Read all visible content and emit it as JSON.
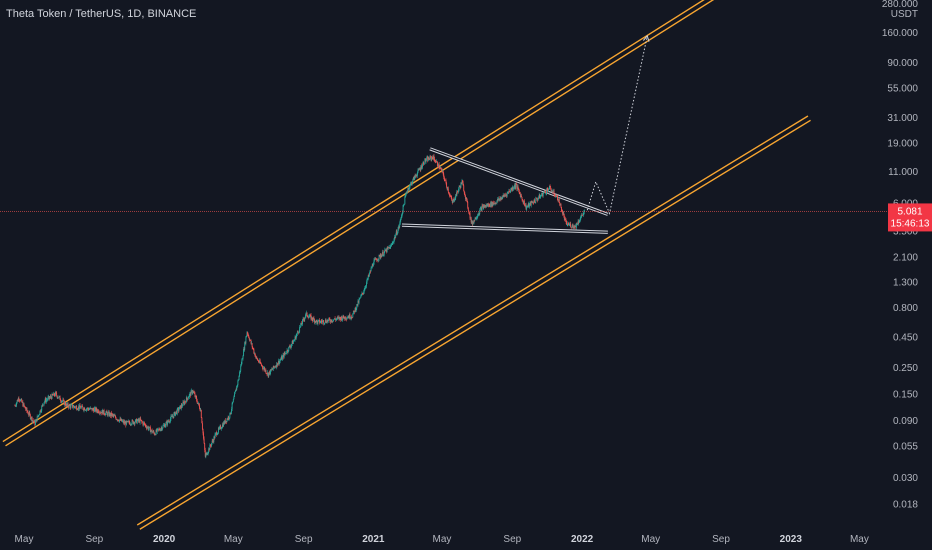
{
  "title": "Theta Token / TetherUS, 1D, BINANCE",
  "price_axis": {
    "unit_top": "280.000",
    "unit_label": "USDT",
    "current_price": "5.081",
    "countdown": "15:46:13"
  },
  "colors": {
    "background": "#131722",
    "up_candle": "#26a69a",
    "down_candle": "#ef5350",
    "channel": "#f7a531",
    "triangle": "#d1d4dc",
    "price_line": "#ef5350",
    "price_badge": "#f23645",
    "axis_text": "#b2b5be"
  },
  "chart_data": {
    "type": "candlestick",
    "title": "Theta Token / TetherUS, 1D, BINANCE",
    "y_scale": "log",
    "ylim": [
      0.012,
      300
    ],
    "yticks": [
      {
        "value": 160,
        "label": "160.000"
      },
      {
        "value": 90,
        "label": "90.000"
      },
      {
        "value": 55,
        "label": "55.000"
      },
      {
        "value": 31,
        "label": "31.000"
      },
      {
        "value": 19,
        "label": "19.000"
      },
      {
        "value": 11,
        "label": "11.000"
      },
      {
        "value": 6,
        "label": "6.000"
      },
      {
        "value": 3.5,
        "label": "3.500"
      },
      {
        "value": 2.1,
        "label": "2.100"
      },
      {
        "value": 1.3,
        "label": "1.300"
      },
      {
        "value": 0.8,
        "label": "0.800"
      },
      {
        "value": 0.45,
        "label": "0.450"
      },
      {
        "value": 0.25,
        "label": "0.250"
      },
      {
        "value": 0.15,
        "label": "0.150"
      },
      {
        "value": 0.09,
        "label": "0.090"
      },
      {
        "value": 0.055,
        "label": "0.055"
      },
      {
        "value": 0.03,
        "label": "0.030"
      },
      {
        "value": 0.018,
        "label": "0.018"
      }
    ],
    "xlim": [
      "2019-03-20",
      "2023-06-20"
    ],
    "xticks": [
      {
        "date": "2019-05-01",
        "label": "May",
        "bold": false
      },
      {
        "date": "2019-09-01",
        "label": "Sep",
        "bold": false
      },
      {
        "date": "2020-01-01",
        "label": "2020",
        "bold": true
      },
      {
        "date": "2020-05-01",
        "label": "May",
        "bold": false
      },
      {
        "date": "2020-09-01",
        "label": "Sep",
        "bold": false
      },
      {
        "date": "2021-01-01",
        "label": "2021",
        "bold": true
      },
      {
        "date": "2021-05-01",
        "label": "May",
        "bold": false
      },
      {
        "date": "2021-09-01",
        "label": "Sep",
        "bold": false
      },
      {
        "date": "2022-01-01",
        "label": "2022",
        "bold": true
      },
      {
        "date": "2022-05-01",
        "label": "May",
        "bold": false
      },
      {
        "date": "2022-09-01",
        "label": "Sep",
        "bold": false
      },
      {
        "date": "2023-01-01",
        "label": "2023",
        "bold": true
      },
      {
        "date": "2023-05-01",
        "label": "May",
        "bold": false
      }
    ],
    "price_path": [
      [
        "2019-04-15",
        0.12
      ],
      [
        "2019-04-22",
        0.14
      ],
      [
        "2019-05-05",
        0.11
      ],
      [
        "2019-05-20",
        0.085
      ],
      [
        "2019-06-05",
        0.13
      ],
      [
        "2019-06-25",
        0.15
      ],
      [
        "2019-07-15",
        0.12
      ],
      [
        "2019-08-10",
        0.115
      ],
      [
        "2019-09-05",
        0.11
      ],
      [
        "2019-10-01",
        0.1
      ],
      [
        "2019-10-25",
        0.085
      ],
      [
        "2019-11-20",
        0.09
      ],
      [
        "2019-12-15",
        0.07
      ],
      [
        "2020-01-05",
        0.085
      ],
      [
        "2020-02-01",
        0.12
      ],
      [
        "2020-02-20",
        0.16
      ],
      [
        "2020-03-05",
        0.11
      ],
      [
        "2020-03-13",
        0.045
      ],
      [
        "2020-04-01",
        0.07
      ],
      [
        "2020-04-25",
        0.1
      ],
      [
        "2020-05-10",
        0.2
      ],
      [
        "2020-05-25",
        0.5
      ],
      [
        "2020-06-10",
        0.3
      ],
      [
        "2020-07-01",
        0.22
      ],
      [
        "2020-07-25",
        0.3
      ],
      [
        "2020-08-15",
        0.42
      ],
      [
        "2020-09-05",
        0.7
      ],
      [
        "2020-09-25",
        0.6
      ],
      [
        "2020-10-15",
        0.62
      ],
      [
        "2020-11-05",
        0.65
      ],
      [
        "2020-11-25",
        0.68
      ],
      [
        "2020-12-15",
        1.1
      ],
      [
        "2021-01-01",
        1.9
      ],
      [
        "2021-01-15",
        2.2
      ],
      [
        "2021-02-01",
        2.6
      ],
      [
        "2021-02-15",
        3.8
      ],
      [
        "2021-02-28",
        7.5
      ],
      [
        "2021-03-15",
        10
      ],
      [
        "2021-04-01",
        13.5
      ],
      [
        "2021-04-15",
        14.5
      ],
      [
        "2021-05-01",
        11
      ],
      [
        "2021-05-19",
        6
      ],
      [
        "2021-06-05",
        9
      ],
      [
        "2021-06-22",
        4
      ],
      [
        "2021-07-10",
        5.5
      ],
      [
        "2021-08-01",
        6
      ],
      [
        "2021-08-20",
        7
      ],
      [
        "2021-09-07",
        8.5
      ],
      [
        "2021-09-25",
        5.5
      ],
      [
        "2021-10-15",
        6.5
      ],
      [
        "2021-11-05",
        8
      ],
      [
        "2021-11-20",
        6.5
      ],
      [
        "2021-12-04",
        4
      ],
      [
        "2021-12-20",
        3.8
      ],
      [
        "2022-01-05",
        5.08
      ]
    ],
    "drawings": {
      "channel_upper": [
        [
          "2019-03-25",
          0.06
        ],
        [
          "2022-08-15",
          330
        ]
      ],
      "channel_lower": [
        [
          "2019-11-15",
          0.012
        ],
        [
          "2023-01-31",
          32
        ]
      ],
      "triangle_upper": [
        [
          "2021-04-10",
          17
        ],
        [
          "2022-02-15",
          4.8
        ]
      ],
      "triangle_lower": [
        [
          "2021-02-20",
          3.9
        ],
        [
          "2022-02-15",
          3.4
        ]
      ],
      "projection_path": [
        [
          "2022-01-10",
          5.2
        ],
        [
          "2022-01-25",
          9
        ],
        [
          "2022-02-18",
          4.9
        ],
        [
          "2022-04-25",
          150
        ]
      ]
    }
  }
}
